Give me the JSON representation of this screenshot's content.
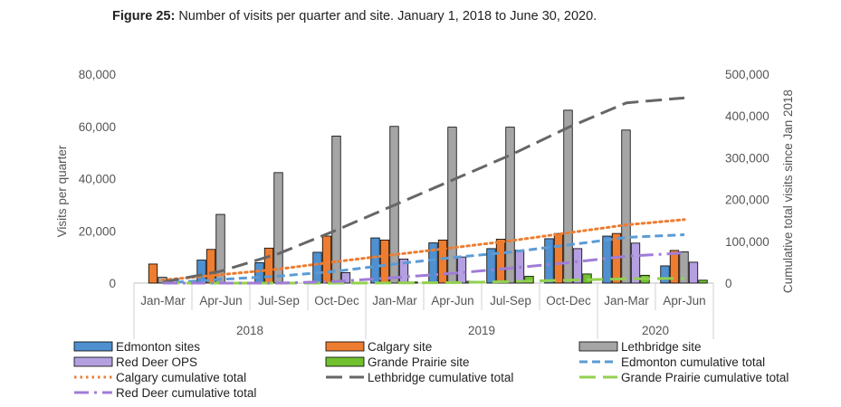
{
  "caption": {
    "prefix": "Figure 25:",
    "text": "Number of visits per quarter and site. January 1, 2018 to June 30, 2020."
  },
  "chart_data": {
    "type": "bar",
    "categories": [
      "Jan-Mar",
      "Apr-Jun",
      "Jul-Sep",
      "Oct-Dec",
      "Jan-Mar",
      "Apr-Jun",
      "Jul-Sep",
      "Oct-Dec",
      "Jan-Mar",
      "Apr-Jun"
    ],
    "year_groups": [
      {
        "label": "2018",
        "count": 4
      },
      {
        "label": "2019",
        "count": 4
      },
      {
        "label": "2020",
        "count": 2
      }
    ],
    "ylabel": "Visits per quarter",
    "y2label": "Cumulative total visits since Jan 2018",
    "ylim": [
      0,
      80000
    ],
    "y2lim": [
      0,
      500000
    ],
    "yticks": [
      "0",
      "20,000",
      "40,000",
      "60,000",
      "80,000"
    ],
    "y2ticks": [
      "0",
      "100,000",
      "200,000",
      "300,000",
      "400,000",
      "500,000"
    ],
    "grid": false,
    "legend_position": "bottom",
    "series": [
      {
        "name": "Edmonton sites",
        "kind": "bar",
        "color": "#4e90d0",
        "values": [
          0,
          8800,
          7800,
          11800,
          17300,
          15400,
          13200,
          17000,
          18000,
          6600
        ]
      },
      {
        "name": "Calgary site",
        "kind": "bar",
        "color": "#ed7d31",
        "values": [
          7300,
          12900,
          13400,
          18000,
          16500,
          16500,
          16800,
          19000,
          19000,
          12500
        ]
      },
      {
        "name": "Lethbridge site",
        "kind": "bar",
        "color": "#a5a5a5",
        "values": [
          2200,
          26300,
          42300,
          56300,
          60000,
          59700,
          59700,
          66200,
          58600,
          12000
        ]
      },
      {
        "name": "Red Deer OPS",
        "kind": "bar",
        "color": "#b4a0e0",
        "values": [
          0,
          0,
          0,
          4000,
          9200,
          10000,
          12600,
          13200,
          15300,
          8000
        ]
      },
      {
        "name": "Grande Prairie site",
        "kind": "bar",
        "color": "#70c030",
        "values": [
          0,
          0,
          0,
          0,
          400,
          700,
          2600,
          3500,
          3000,
          1100
        ]
      },
      {
        "name": "Edmonton cumulative total",
        "kind": "line",
        "color": "#5b9bd5",
        "dash": "dashed",
        "values": [
          0,
          8800,
          16600,
          28400,
          45700,
          61100,
          74300,
          91300,
          109300,
          115900
        ]
      },
      {
        "name": "Calgary cumulative total",
        "kind": "line",
        "color": "#ed7d31",
        "dash": "dotted",
        "values": [
          7300,
          20200,
          33600,
          51600,
          68100,
          84600,
          101400,
          120400,
          139400,
          151900
        ]
      },
      {
        "name": "Lethbridge cumulative total",
        "kind": "line",
        "color": "#666666",
        "dash": "longdash",
        "values": [
          2200,
          28500,
          70800,
          127100,
          187100,
          246800,
          306500,
          372700,
          431300,
          443300
        ]
      },
      {
        "name": "Grande Prairie cumulative total",
        "kind": "line",
        "color": "#92d050",
        "dash": "longdash",
        "values": [
          0,
          0,
          0,
          0,
          400,
          1100,
          3700,
          7200,
          10200,
          11300
        ]
      },
      {
        "name": "Red Deer cumulative total",
        "kind": "line",
        "color": "#a07cd8",
        "dash": "dashdot",
        "values": [
          0,
          0,
          0,
          4000,
          13200,
          23200,
          35800,
          49000,
          64300,
          72300
        ]
      }
    ]
  }
}
